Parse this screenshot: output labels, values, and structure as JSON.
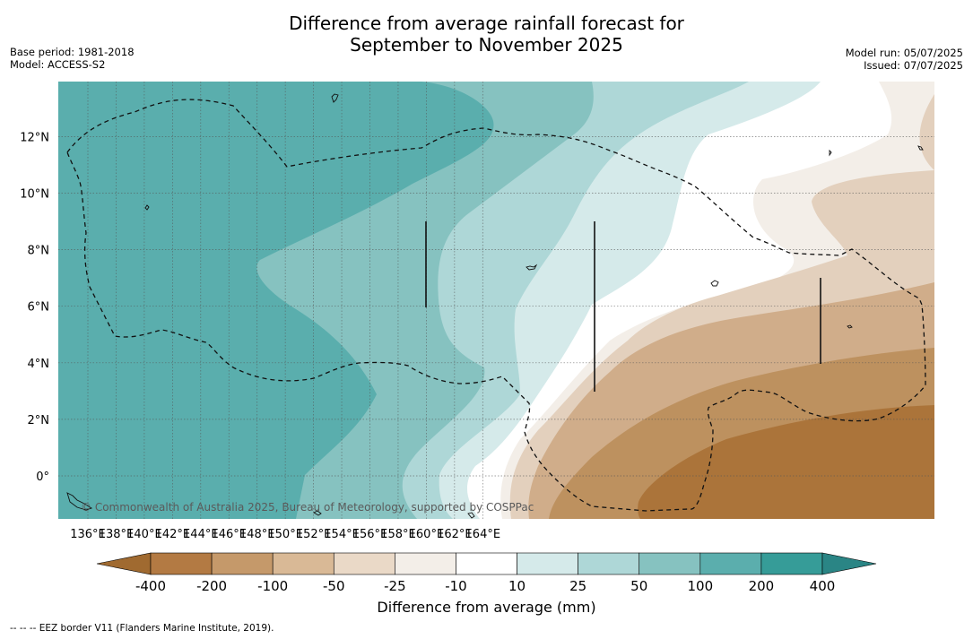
{
  "title_line1": "Difference from average rainfall forecast for",
  "title_line2": "September to November 2025",
  "meta_left": {
    "base_period": "Base period: 1981-2018",
    "model": "Model: ACCESS-S2"
  },
  "meta_right": {
    "model_run": "Model run: 05/07/2025",
    "issued": "Issued: 07/07/2025"
  },
  "copyright": "© Commonwealth of Australia 2025, Bureau of Meteorology, supported by COSPPac",
  "lon_labels": [
    "136°E",
    "138°E",
    "140°E",
    "142°E",
    "144°E",
    "146°E",
    "148°E",
    "150°E",
    "152°E",
    "154°E",
    "156°E",
    "158°E",
    "160°E",
    "162°E",
    "164°E"
  ],
  "lat_labels": [
    "12°N",
    "10°N",
    "8°N",
    "6°N",
    "4°N",
    "2°N",
    "0°"
  ],
  "colorbar": {
    "title": "Difference from average (mm)",
    "ticks": [
      "-400",
      "-200",
      "-100",
      "-50",
      "-25",
      "-10",
      "10",
      "25",
      "50",
      "100",
      "200",
      "400"
    ],
    "colors": [
      "#a06a30",
      "#b37a43",
      "#c5996a",
      "#d9b996",
      "#ead9c7",
      "#f3eee8",
      "#ffffff",
      "#d5eaea",
      "#aed7d7",
      "#86c2c0",
      "#5baead",
      "#369c98",
      "#2a8585"
    ]
  },
  "footnote": "--  --  -- EEZ border V11 (Flanders Marine Institute, 2019)."
}
